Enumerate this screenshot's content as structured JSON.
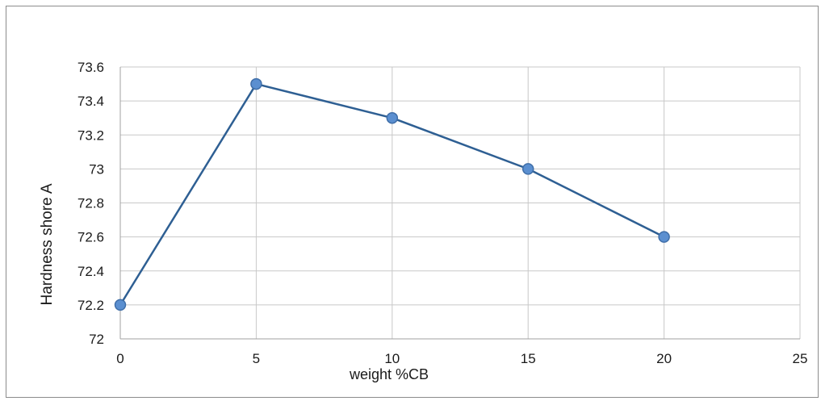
{
  "chart_data": {
    "type": "line",
    "title": "",
    "xlabel": "weight %CB",
    "ylabel": "Hardness shore A",
    "x": [
      0,
      5,
      10,
      15,
      20
    ],
    "series": [
      {
        "values": [
          72.2,
          73.5,
          73.3,
          73.0,
          72.6
        ]
      }
    ],
    "xlim": [
      0,
      25
    ],
    "ylim": [
      72,
      73.6
    ],
    "xticks": [
      0,
      5,
      10,
      15,
      20,
      25
    ],
    "yticks": [
      72,
      72.2,
      72.4,
      72.6,
      72.8,
      73,
      73.2,
      73.4,
      73.6
    ],
    "xtick_labels": [
      "0",
      "5",
      "10",
      "15",
      "20",
      "25"
    ],
    "ytick_labels": [
      "72",
      "72.2",
      "72.4",
      "72.6",
      "72.8",
      "73",
      "73.2",
      "73.4",
      "73.6"
    ],
    "grid": "vertical and horizontal",
    "legend": "none",
    "colors": {
      "line": "#2e5f93",
      "marker_fill": "#5b8fd0",
      "marker_edge": "#3f6ea8",
      "grid": "#c8c8c8"
    }
  }
}
